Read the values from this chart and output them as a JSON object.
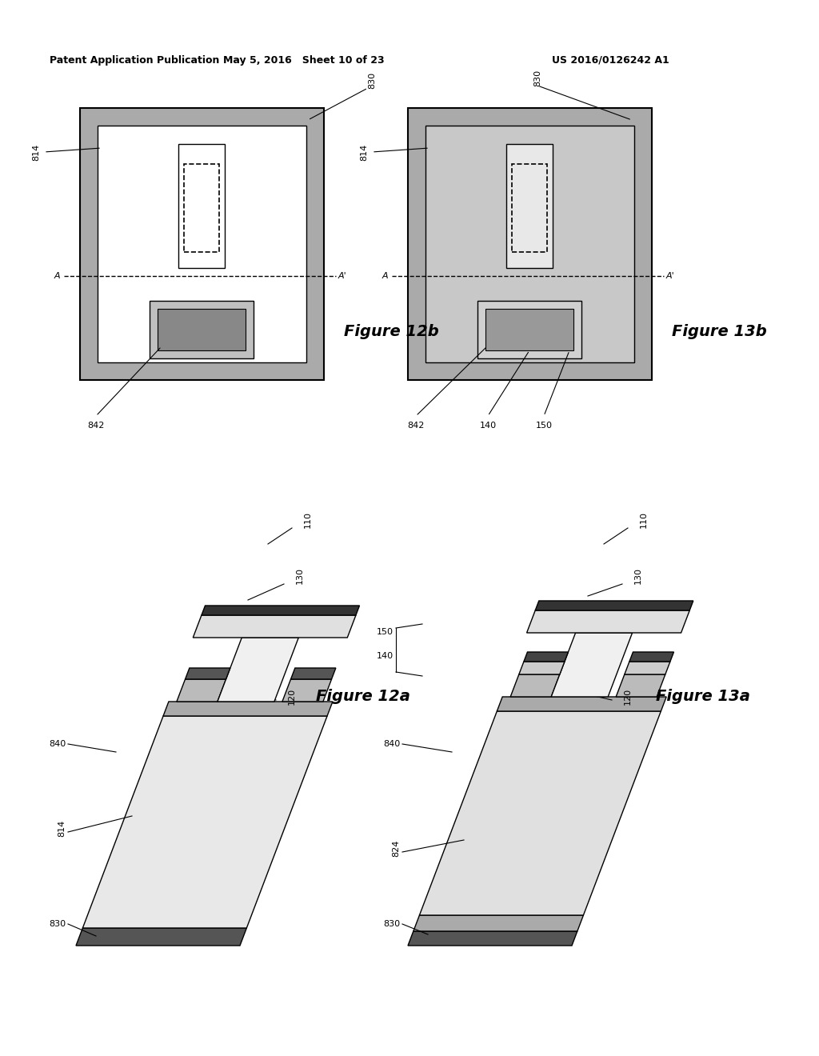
{
  "header_left": "Patent Application Publication",
  "header_mid": "May 5, 2016   Sheet 10 of 23",
  "header_right": "US 2016/0126242 A1",
  "bg_color": "#ffffff",
  "col1_gray": "#b8b8b8",
  "col2_gray": "#c8c8c8",
  "white": "#ffffff",
  "black": "#000000",
  "dark_gray": "#555555",
  "med_gray": "#aaaaaa",
  "light_gray": "#dddddd",
  "hatched_gray": "#bbbbbb"
}
